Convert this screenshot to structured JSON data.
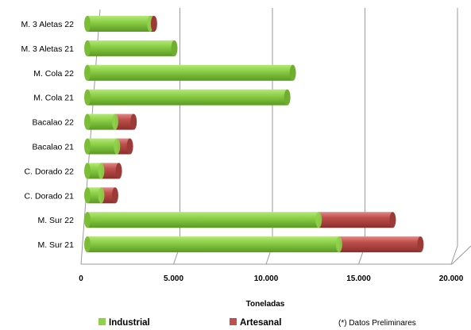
{
  "chart_data": {
    "type": "bar",
    "orientation": "horizontal",
    "stacked": true,
    "style": "3d-cylinder",
    "categories": [
      "M. 3 Aletas 22",
      "M. 3 Aletas 21",
      "M. Cola 22",
      "M. Cola 21",
      "Bacalao 22",
      "Bacalao 21",
      "C. Dorado 22",
      "C. Dorado 21",
      "M. Sur 22",
      "M. Sur 21"
    ],
    "series": [
      {
        "name": "Industrial",
        "color": "#8FD24A",
        "values": [
          3400,
          4700,
          11100,
          10800,
          1500,
          1600,
          750,
          750,
          12500,
          13600
        ]
      },
      {
        "name": "Artesanal",
        "color": "#C0504D",
        "values": [
          200,
          0,
          0,
          0,
          1000,
          700,
          950,
          750,
          4000,
          4400
        ]
      }
    ],
    "xlabel": "Toneladas",
    "xlim": [
      0,
      20000
    ],
    "xticks": [
      0,
      5000,
      10000,
      15000,
      20000
    ],
    "xtick_labels": [
      "0",
      "5.000",
      "10.000",
      "15.000",
      "20.000"
    ],
    "grid": true,
    "legend_position": "bottom",
    "note": "(*) Datos Preliminares"
  }
}
